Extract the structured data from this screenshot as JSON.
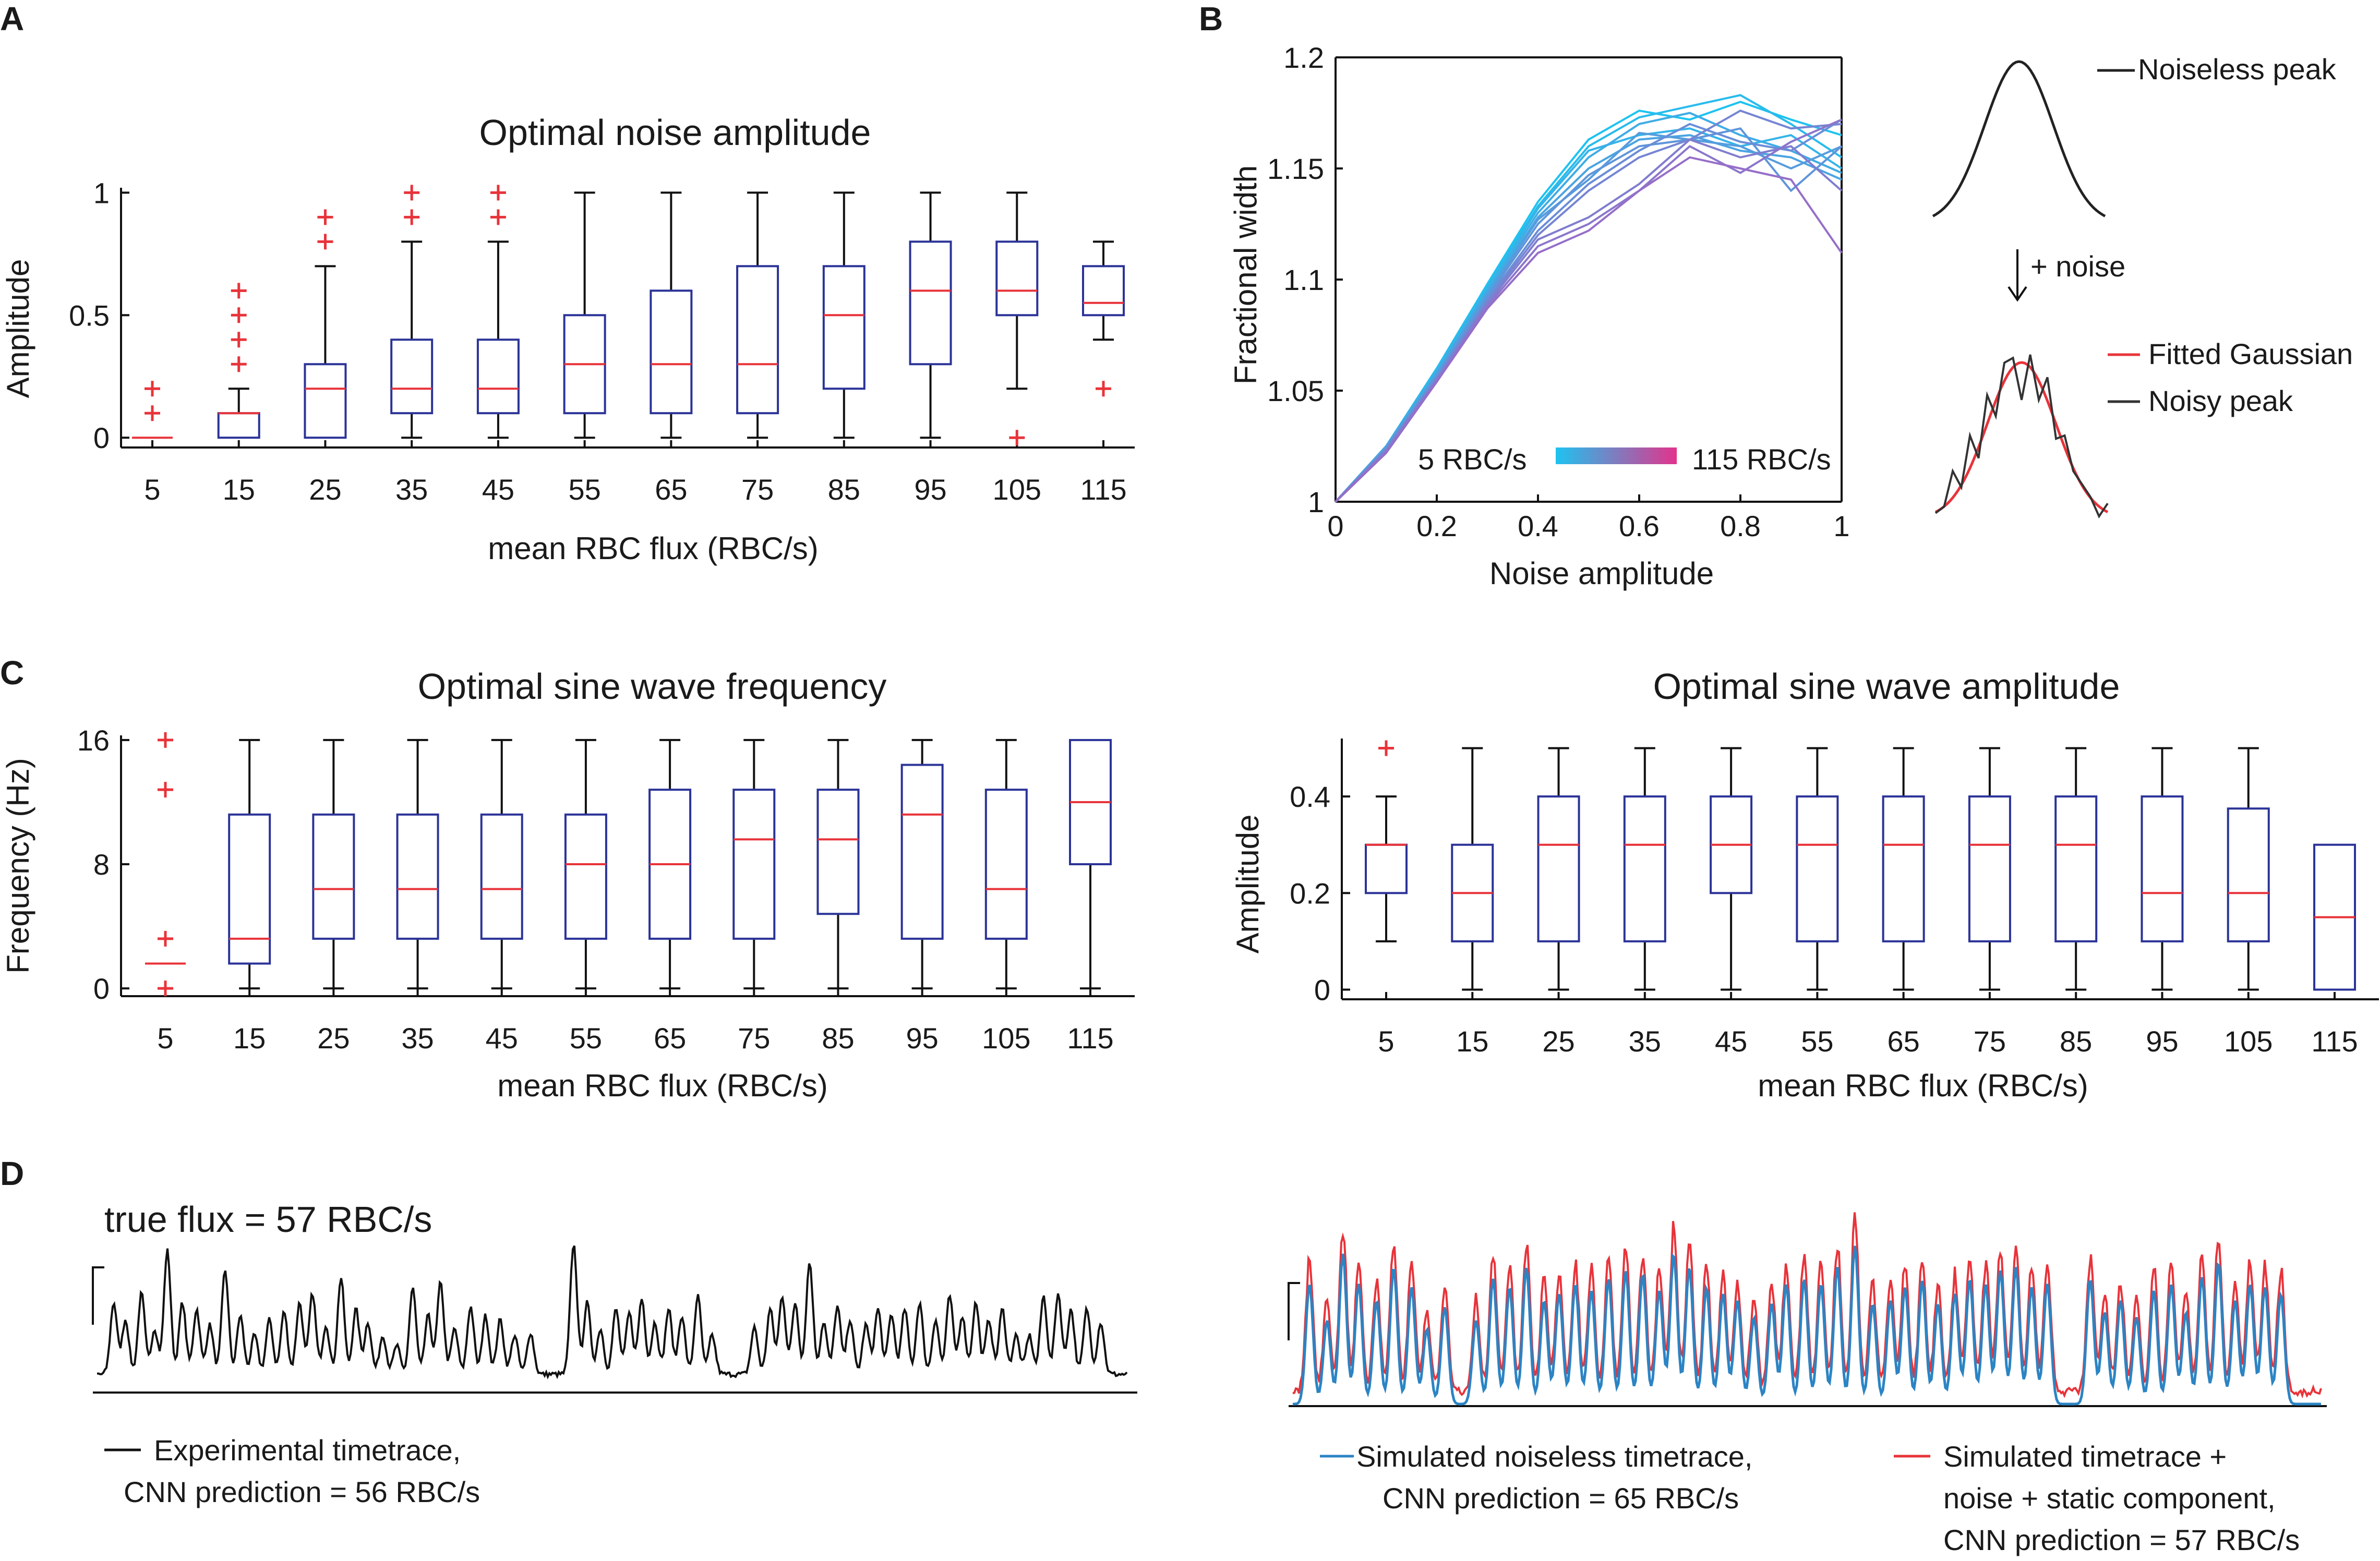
{
  "colors": {
    "box": "#2b3398",
    "median": "#e8333a",
    "whisker": "#111111",
    "outlier": "#e8333a",
    "axis": "#111111",
    "cyan": "#1ec3f0",
    "magenta": "#e2338c",
    "sim": "#2b84c4"
  },
  "panel_letters": {
    "a": "A",
    "b": "B",
    "c": "C",
    "d": "D"
  },
  "chart_data": [
    {
      "id": "A",
      "type": "boxplot",
      "title": "Optimal noise amplitude",
      "xlabel": "mean RBC flux (RBC/s)",
      "ylabel": "Amplitude",
      "ylim": [
        -0.04,
        1.02
      ],
      "yticks": [
        0,
        0.5,
        1
      ],
      "ytick_labels": [
        "0",
        "0.5",
        "1"
      ],
      "categories": [
        "5",
        "15",
        "25",
        "35",
        "45",
        "55",
        "65",
        "75",
        "85",
        "95",
        "105",
        "115"
      ],
      "boxes": [
        {
          "q1": 0,
          "median": 0,
          "q3": 0,
          "whislo": 0,
          "whishi": 0,
          "fliers": [
            0.1,
            0.2
          ]
        },
        {
          "q1": 0,
          "median": 0.1,
          "q3": 0.1,
          "whislo": 0,
          "whishi": 0.2,
          "fliers": [
            0.3,
            0.4,
            0.5,
            0.6
          ]
        },
        {
          "q1": 0,
          "median": 0.2,
          "q3": 0.3,
          "whislo": 0,
          "whishi": 0.7,
          "fliers": [
            0.8,
            0.9
          ]
        },
        {
          "q1": 0.1,
          "median": 0.2,
          "q3": 0.4,
          "whislo": 0,
          "whishi": 0.8,
          "fliers": [
            0.9,
            1.0
          ]
        },
        {
          "q1": 0.1,
          "median": 0.2,
          "q3": 0.4,
          "whislo": 0,
          "whishi": 0.8,
          "fliers": [
            0.9,
            1.0
          ]
        },
        {
          "q1": 0.1,
          "median": 0.3,
          "q3": 0.5,
          "whislo": 0,
          "whishi": 1.0,
          "fliers": []
        },
        {
          "q1": 0.1,
          "median": 0.3,
          "q3": 0.6,
          "whislo": 0,
          "whishi": 1.0,
          "fliers": []
        },
        {
          "q1": 0.1,
          "median": 0.3,
          "q3": 0.7,
          "whislo": 0,
          "whishi": 1.0,
          "fliers": []
        },
        {
          "q1": 0.2,
          "median": 0.5,
          "q3": 0.7,
          "whislo": 0,
          "whishi": 1.0,
          "fliers": []
        },
        {
          "q1": 0.3,
          "median": 0.6,
          "q3": 0.8,
          "whislo": 0,
          "whishi": 1.0,
          "fliers": []
        },
        {
          "q1": 0.5,
          "median": 0.6,
          "q3": 0.8,
          "whislo": 0.2,
          "whishi": 1.0,
          "fliers": [
            0
          ]
        },
        {
          "q1": 0.5,
          "median": 0.55,
          "q3": 0.7,
          "whislo": 0.4,
          "whishi": 0.8,
          "fliers": [
            0.2
          ]
        }
      ]
    },
    {
      "id": "B",
      "type": "line",
      "xlabel": "Noise amplitude",
      "ylabel": "Fractional width",
      "xlim": [
        0,
        1
      ],
      "ylim": [
        1,
        1.2
      ],
      "xticks": [
        0,
        0.2,
        0.4,
        0.6,
        0.8,
        1
      ],
      "xtick_labels": [
        "0",
        "0.2",
        "0.4",
        "0.6",
        "0.8",
        "1"
      ],
      "yticks": [
        1,
        1.05,
        1.1,
        1.15,
        1.2
      ],
      "ytick_labels": [
        "1",
        "1.05",
        "1.1",
        "1.15",
        "1.2"
      ],
      "x": [
        0,
        0.1,
        0.2,
        0.3,
        0.4,
        0.5,
        0.6,
        0.7,
        0.8,
        0.9,
        1.0
      ],
      "series": [
        {
          "name": "5",
          "values": [
            1,
            1.025,
            1.06,
            1.098,
            1.135,
            1.163,
            1.176,
            1.172,
            1.18,
            1.172,
            1.165
          ]
        },
        {
          "name": "15",
          "values": [
            1,
            1.025,
            1.06,
            1.097,
            1.133,
            1.16,
            1.173,
            1.178,
            1.183,
            1.17,
            1.155
          ]
        },
        {
          "name": "25",
          "values": [
            1,
            1.025,
            1.059,
            1.096,
            1.132,
            1.158,
            1.165,
            1.168,
            1.16,
            1.165,
            1.15
          ]
        },
        {
          "name": "35",
          "values": [
            1,
            1.025,
            1.058,
            1.095,
            1.13,
            1.155,
            1.17,
            1.175,
            1.165,
            1.158,
            1.148
          ]
        },
        {
          "name": "45",
          "values": [
            1,
            1.025,
            1.058,
            1.094,
            1.128,
            1.15,
            1.163,
            1.165,
            1.158,
            1.155,
            1.145
          ]
        },
        {
          "name": "55",
          "values": [
            1,
            1.024,
            1.057,
            1.093,
            1.127,
            1.145,
            1.166,
            1.163,
            1.16,
            1.15,
            1.16
          ]
        },
        {
          "name": "65",
          "values": [
            1,
            1.024,
            1.056,
            1.092,
            1.125,
            1.147,
            1.16,
            1.163,
            1.168,
            1.14,
            1.16
          ]
        },
        {
          "name": "75",
          "values": [
            1,
            1.024,
            1.056,
            1.091,
            1.122,
            1.143,
            1.158,
            1.17,
            1.162,
            1.158,
            1.172
          ]
        },
        {
          "name": "85",
          "values": [
            1,
            1.023,
            1.055,
            1.09,
            1.12,
            1.14,
            1.155,
            1.163,
            1.176,
            1.168,
            1.17
          ]
        },
        {
          "name": "95",
          "values": [
            1,
            1.023,
            1.055,
            1.089,
            1.118,
            1.128,
            1.143,
            1.163,
            1.155,
            1.16,
            1.14
          ]
        },
        {
          "name": "105",
          "values": [
            1,
            1.022,
            1.054,
            1.088,
            1.115,
            1.125,
            1.14,
            1.16,
            1.148,
            1.162,
            1.172
          ]
        },
        {
          "name": "115",
          "values": [
            1,
            1.022,
            1.054,
            1.087,
            1.112,
            1.122,
            1.14,
            1.155,
            1.15,
            1.145,
            1.112
          ]
        }
      ],
      "colorbar": {
        "from_label": "5 RBC/s",
        "to_label": "115 RBC/s"
      },
      "inset": {
        "noiseless_label": "Noiseless peak",
        "arrow_label": "+ noise",
        "fitted_label": "Fitted Gaussian",
        "noisy_label": "Noisy peak",
        "noisy_values": [
          0.02,
          0.06,
          0.28,
          0.18,
          0.5,
          0.36,
          0.75,
          0.62,
          0.95,
          0.98,
          0.72,
          1.0,
          0.72,
          0.86,
          0.48,
          0.5,
          0.28,
          0.2,
          0.12,
          0.0,
          0.08
        ]
      }
    },
    {
      "id": "C1",
      "type": "boxplot",
      "title": "Optimal sine wave frequency",
      "xlabel": "mean RBC flux (RBC/s)",
      "ylabel": "Frequency (Hz)",
      "ylim": [
        -0.5,
        16.3
      ],
      "yticks": [
        0,
        8,
        16
      ],
      "ytick_labels": [
        "0",
        "8",
        "16"
      ],
      "categories": [
        "5",
        "15",
        "25",
        "35",
        "45",
        "55",
        "65",
        "75",
        "85",
        "95",
        "105",
        "115"
      ],
      "boxes": [
        {
          "q1": 1.6,
          "median": 1.6,
          "q3": 1.6,
          "whislo": 1.6,
          "whishi": 1.6,
          "fliers": [
            0,
            3.2,
            12.8,
            16
          ]
        },
        {
          "q1": 1.6,
          "median": 3.2,
          "q3": 11.2,
          "whislo": 0,
          "whishi": 16,
          "fliers": []
        },
        {
          "q1": 3.2,
          "median": 6.4,
          "q3": 11.2,
          "whislo": 0,
          "whishi": 16,
          "fliers": []
        },
        {
          "q1": 3.2,
          "median": 6.4,
          "q3": 11.2,
          "whislo": 0,
          "whishi": 16,
          "fliers": []
        },
        {
          "q1": 3.2,
          "median": 6.4,
          "q3": 11.2,
          "whislo": 0,
          "whishi": 16,
          "fliers": []
        },
        {
          "q1": 3.2,
          "median": 8,
          "q3": 11.2,
          "whislo": 0,
          "whishi": 16,
          "fliers": []
        },
        {
          "q1": 3.2,
          "median": 8,
          "q3": 12.8,
          "whislo": 0,
          "whishi": 16,
          "fliers": []
        },
        {
          "q1": 3.2,
          "median": 9.6,
          "q3": 12.8,
          "whislo": 0,
          "whishi": 16,
          "fliers": []
        },
        {
          "q1": 4.8,
          "median": 9.6,
          "q3": 12.8,
          "whislo": 0,
          "whishi": 16,
          "fliers": []
        },
        {
          "q1": 3.2,
          "median": 11.2,
          "q3": 14.4,
          "whislo": 0,
          "whishi": 16,
          "fliers": []
        },
        {
          "q1": 3.2,
          "median": 6.4,
          "q3": 12.8,
          "whislo": 0,
          "whishi": 16,
          "fliers": []
        },
        {
          "q1": 8,
          "median": 12,
          "q3": 16,
          "whislo": 0,
          "whishi": 16,
          "fliers": []
        }
      ]
    },
    {
      "id": "C2",
      "type": "boxplot",
      "title": "Optimal sine wave amplitude",
      "xlabel": "mean RBC flux (RBC/s)",
      "ylabel": "Amplitude",
      "ylim": [
        -0.02,
        0.52
      ],
      "yticks": [
        0,
        0.2,
        0.4
      ],
      "ytick_labels": [
        "0",
        "0.2",
        "0.4"
      ],
      "categories": [
        "5",
        "15",
        "25",
        "35",
        "45",
        "55",
        "65",
        "75",
        "85",
        "95",
        "105",
        "115"
      ],
      "boxes": [
        {
          "q1": 0.2,
          "median": 0.3,
          "q3": 0.3,
          "whislo": 0.1,
          "whishi": 0.4,
          "fliers": [
            0.5
          ]
        },
        {
          "q1": 0.1,
          "median": 0.2,
          "q3": 0.3,
          "whislo": 0,
          "whishi": 0.5,
          "fliers": []
        },
        {
          "q1": 0.1,
          "median": 0.3,
          "q3": 0.4,
          "whislo": 0,
          "whishi": 0.5,
          "fliers": []
        },
        {
          "q1": 0.1,
          "median": 0.3,
          "q3": 0.4,
          "whislo": 0,
          "whishi": 0.5,
          "fliers": []
        },
        {
          "q1": 0.2,
          "median": 0.3,
          "q3": 0.4,
          "whislo": 0,
          "whishi": 0.5,
          "fliers": []
        },
        {
          "q1": 0.1,
          "median": 0.3,
          "q3": 0.4,
          "whislo": 0,
          "whishi": 0.5,
          "fliers": []
        },
        {
          "q1": 0.1,
          "median": 0.3,
          "q3": 0.4,
          "whislo": 0,
          "whishi": 0.5,
          "fliers": []
        },
        {
          "q1": 0.1,
          "median": 0.3,
          "q3": 0.4,
          "whislo": 0,
          "whishi": 0.5,
          "fliers": []
        },
        {
          "q1": 0.1,
          "median": 0.3,
          "q3": 0.4,
          "whislo": 0,
          "whishi": 0.5,
          "fliers": []
        },
        {
          "q1": 0.1,
          "median": 0.2,
          "q3": 0.4,
          "whislo": 0,
          "whishi": 0.5,
          "fliers": []
        },
        {
          "q1": 0.1,
          "median": 0.2,
          "q3": 0.375,
          "whislo": 0,
          "whishi": 0.5,
          "fliers": []
        },
        {
          "q1": 0,
          "median": 0.15,
          "q3": 0.3,
          "whislo": 0,
          "whishi": 0.3,
          "fliers": []
        }
      ]
    },
    {
      "id": "D",
      "type": "line",
      "title": "true flux = 57 RBC/s",
      "left_legend": "Experimental timetrace,",
      "left_legend_2": "CNN prediction = 56 RBC/s",
      "sim_legend": "Simulated noiseless timetrace,",
      "sim_legend_2": "CNN prediction = 65 RBC/s",
      "noise_legend": "Simulated timetrace +",
      "noise_legend_2": "noise + static component,",
      "noise_legend_3": "CNN prediction = 57 RBC/s",
      "exp_peaks": [
        0.55,
        0.42,
        0.62,
        0.35,
        0.95,
        0.55,
        0.5,
        0.38,
        0.8,
        0.45,
        0.3,
        0.42,
        0.48,
        0.55,
        0.62,
        0.38,
        0.74,
        0.5,
        0.4,
        0.3,
        0.22,
        0.66,
        0.45,
        0.7,
        0.35,
        0.52,
        0.45,
        0.42,
        0.3,
        0.32,
        1.0,
        0.55,
        0.35,
        0.5,
        0.47,
        0.58,
        0.4,
        0.5,
        0.45,
        0.6,
        0.3,
        0.36,
        0.5,
        0.6,
        0.55,
        0.86,
        0.4,
        0.52,
        0.42,
        0.38,
        0.5,
        0.46,
        0.5,
        0.55,
        0.42,
        0.6,
        0.45,
        0.55,
        0.42,
        0.5,
        0.3,
        0.3,
        0.6,
        0.62,
        0.5,
        0.5,
        0.4
      ],
      "sim_peaks": [
        0.72,
        0.5,
        0.9,
        0.72,
        0.62,
        0.82,
        0.7,
        0.45,
        0.58,
        0.5,
        0.75,
        0.7,
        0.82,
        0.62,
        0.66,
        0.72,
        0.68,
        0.75,
        0.8,
        0.78,
        0.68,
        0.9,
        0.82,
        0.7,
        0.66,
        0.62,
        0.52,
        0.6,
        0.72,
        0.75,
        0.72,
        0.82,
        0.95,
        0.6,
        0.62,
        0.7,
        0.74,
        0.6,
        0.66,
        0.75,
        0.72,
        0.8,
        0.82,
        0.7,
        0.72,
        0.75,
        0.55,
        0.62,
        0.52,
        0.68,
        0.72,
        0.55,
        0.76,
        0.85,
        0.62,
        0.72,
        0.7,
        0.66
      ]
    }
  ]
}
